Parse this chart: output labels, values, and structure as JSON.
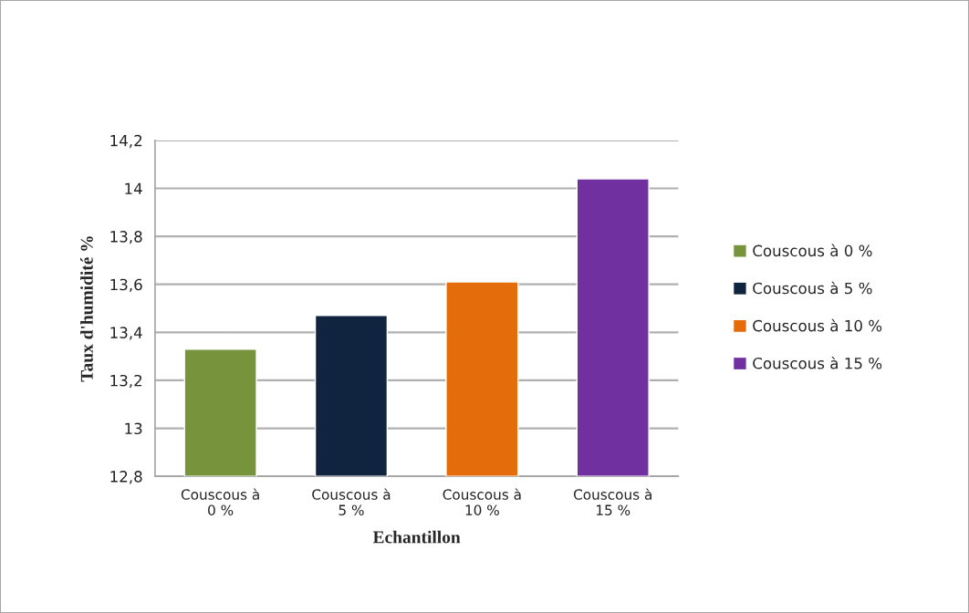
{
  "chart_data": {
    "type": "bar",
    "categories": [
      "Couscous à\n0 %",
      "Couscous à\n5 %",
      "Couscous à\n10 %",
      "Couscous à\n15 %"
    ],
    "series": [
      {
        "name": "Couscous à 0 %",
        "color": "#77933c",
        "values": [
          13.33,
          null,
          null,
          null
        ]
      },
      {
        "name": "Couscous à 5 %",
        "color": "#10243f",
        "values": [
          null,
          13.47,
          null,
          null
        ]
      },
      {
        "name": "Couscous à 10 %",
        "color": "#e46c0a",
        "values": [
          null,
          null,
          13.61,
          null
        ]
      },
      {
        "name": "Couscous à 15 %",
        "color": "#7030a0",
        "values": [
          null,
          null,
          null,
          14.04
        ]
      }
    ],
    "xlabel": "Echantillon",
    "ylabel": "Taux d'humidité %",
    "ylim": [
      12.8,
      14.2
    ],
    "yticks": [
      {
        "value": 12.8,
        "label": "12,8"
      },
      13,
      {
        "value": 13.2,
        "label": "13,2"
      },
      {
        "value": 13.4,
        "label": "13,4"
      },
      {
        "value": 13.6,
        "label": "13,6"
      },
      {
        "value": 13.8,
        "label": "13,8"
      },
      14,
      {
        "value": 14.2,
        "label": "14,2"
      }
    ],
    "grid": "y",
    "legend": "right"
  }
}
